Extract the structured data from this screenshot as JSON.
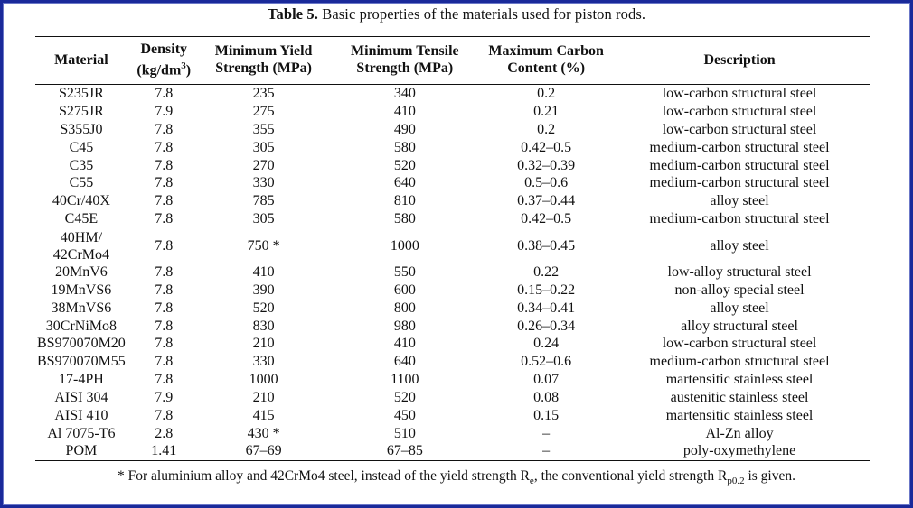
{
  "caption": {
    "label": "Table 5.",
    "text": " Basic properties of the materials used for piston rods."
  },
  "headers": {
    "material": "Material",
    "density_1": "Density",
    "density_2a": "(kg/dm",
    "density_sup": "3",
    "density_2b": ")",
    "yield_1": "Minimum Yield",
    "yield_2": "Strength (MPa)",
    "tensile_1": "Minimum Tensile",
    "tensile_2": "Strength (MPa)",
    "carbon_1": "Maximum Carbon",
    "carbon_2": "Content (%)",
    "description": "Description"
  },
  "rows": [
    {
      "material": "S235JR",
      "density": "7.8",
      "yield": "235",
      "tensile": "340",
      "carbon": "0.2",
      "description": "low-carbon structural steel"
    },
    {
      "material": "S275JR",
      "density": "7.9",
      "yield": "275",
      "tensile": "410",
      "carbon": "0.21",
      "description": "low-carbon structural steel"
    },
    {
      "material": "S355J0",
      "density": "7.8",
      "yield": "355",
      "tensile": "490",
      "carbon": "0.2",
      "description": "low-carbon structural steel"
    },
    {
      "material": "C45",
      "density": "7.8",
      "yield": "305",
      "tensile": "580",
      "carbon": "0.42–0.5",
      "description": "medium-carbon structural steel"
    },
    {
      "material": "C35",
      "density": "7.8",
      "yield": "270",
      "tensile": "520",
      "carbon": "0.32–0.39",
      "description": "medium-carbon structural steel"
    },
    {
      "material": "C55",
      "density": "7.8",
      "yield": "330",
      "tensile": "640",
      "carbon": "0.5–0.6",
      "description": "medium-carbon structural steel"
    },
    {
      "material": "40Cr/40X",
      "density": "7.8",
      "yield": "785",
      "tensile": "810",
      "carbon": "0.37–0.44",
      "description": "alloy steel"
    },
    {
      "material": "C45E",
      "density": "7.8",
      "yield": "305",
      "tensile": "580",
      "carbon": "0.42–0.5",
      "description": "medium-carbon structural steel"
    },
    {
      "material_line1": "40HM/",
      "material_line2": "42CrMo4",
      "density": "7.8",
      "yield": "750 *",
      "tensile": "1000",
      "carbon": "0.38–0.45",
      "description": "alloy steel"
    },
    {
      "material": "20MnV6",
      "density": "7.8",
      "yield": "410",
      "tensile": "550",
      "carbon": "0.22",
      "description": "low-alloy structural steel"
    },
    {
      "material": "19MnVS6",
      "density": "7.8",
      "yield": "390",
      "tensile": "600",
      "carbon": "0.15–0.22",
      "description": "non-alloy special steel"
    },
    {
      "material": "38MnVS6",
      "density": "7.8",
      "yield": "520",
      "tensile": "800",
      "carbon": "0.34–0.41",
      "description": "alloy steel"
    },
    {
      "material": "30CrNiMo8",
      "density": "7.8",
      "yield": "830",
      "tensile": "980",
      "carbon": "0.26–0.34",
      "description": "alloy structural steel"
    },
    {
      "material": "BS970070M20",
      "density": "7.8",
      "yield": "210",
      "tensile": "410",
      "carbon": "0.24",
      "description": "low-carbon structural steel"
    },
    {
      "material": "BS970070M55",
      "density": "7.8",
      "yield": "330",
      "tensile": "640",
      "carbon": "0.52–0.6",
      "description": "medium-carbon structural steel"
    },
    {
      "material": "17-4PH",
      "density": "7.8",
      "yield": "1000",
      "tensile": "1100",
      "carbon": "0.07",
      "description": "martensitic stainless steel"
    },
    {
      "material": "AISI 304",
      "density": "7.9",
      "yield": "210",
      "tensile": "520",
      "carbon": "0.08",
      "description": "austenitic stainless steel"
    },
    {
      "material": "AISI 410",
      "density": "7.8",
      "yield": "415",
      "tensile": "450",
      "carbon": "0.15",
      "description": "martensitic stainless steel"
    },
    {
      "material": "Al 7075-T6",
      "density": "2.8",
      "yield": "430 *",
      "tensile": "510",
      "carbon": "–",
      "description": "Al-Zn alloy"
    },
    {
      "material": "POM",
      "density": "1.41",
      "yield": "67–69",
      "tensile": "67–85",
      "carbon": "–",
      "description": "poly-oxymethylene"
    }
  ],
  "footnote": {
    "part1": "* For aluminium alloy and 42CrMo4 steel, instead of the yield strength R",
    "sub1": "e",
    "part2": ", the conventional yield strength R",
    "sub2": "p0.2",
    "part3": " is given."
  }
}
